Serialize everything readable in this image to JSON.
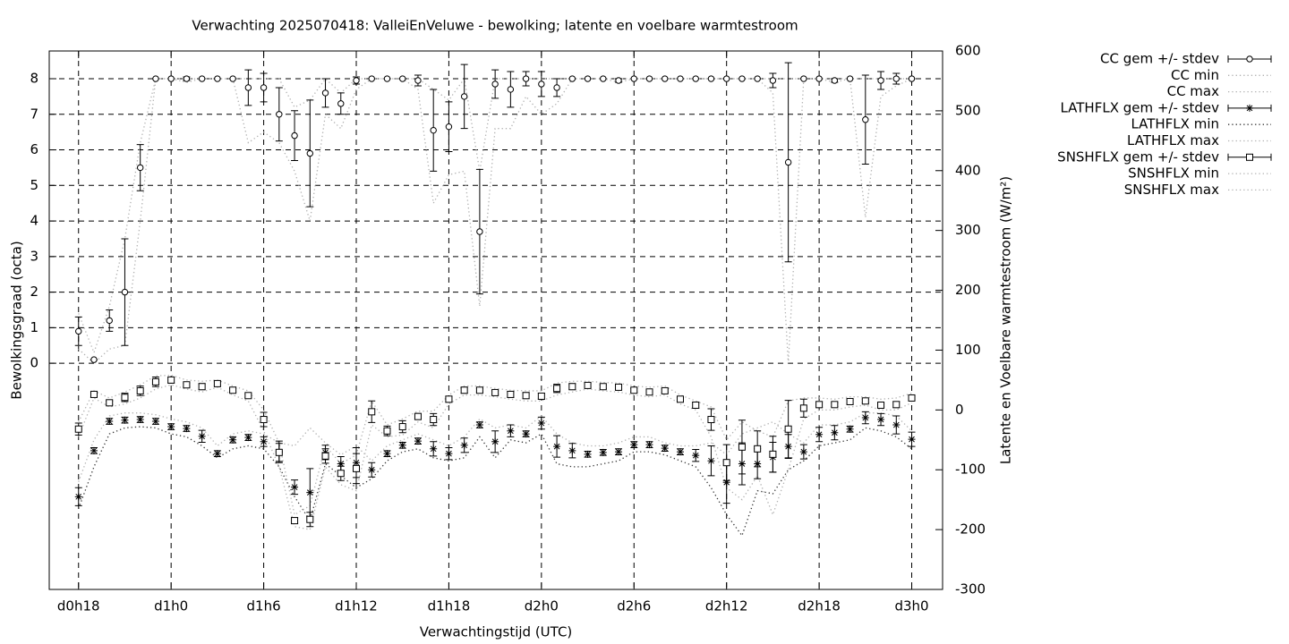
{
  "chart_data": {
    "type": "errorbar",
    "title": "Verwachting 2025070418: ValleiEnVeluwe - bewolking; latente en voelbare warmtestroom",
    "x_label": "Verwachtingstijd (UTC)",
    "y_label": "Bewolkingsgraad (octa)",
    "y2_label": "Latente en Voelbare warmtestroom (W/m²)",
    "x": [
      18,
      19,
      20,
      21,
      22,
      23,
      24,
      25,
      26,
      27,
      28,
      29,
      30,
      31,
      32,
      33,
      34,
      35,
      36,
      37,
      38,
      39,
      40,
      41,
      42,
      43,
      44,
      45,
      46,
      47,
      48,
      49,
      50,
      51,
      52,
      53,
      54,
      55,
      56,
      57,
      58,
      59,
      60,
      61,
      62,
      63,
      64,
      65,
      66,
      67,
      68,
      69,
      70,
      71,
      72
    ],
    "xlim": [
      16.1,
      74.0
    ],
    "xticks": [
      {
        "value": 18,
        "label": "d0h18"
      },
      {
        "value": 24,
        "label": "d1h0"
      },
      {
        "value": 30,
        "label": "d1h6"
      },
      {
        "value": 36,
        "label": "d1h12"
      },
      {
        "value": 42,
        "label": "d1h18"
      },
      {
        "value": 48,
        "label": "d2h0"
      },
      {
        "value": 54,
        "label": "d2h6"
      },
      {
        "value": 60,
        "label": "d2h12"
      },
      {
        "value": 66,
        "label": "d2h18"
      },
      {
        "value": 72,
        "label": "d3h0"
      }
    ],
    "ylim": [
      -6.36,
      8.78
    ],
    "yticks": [
      0,
      1,
      2,
      3,
      4,
      5,
      6,
      7,
      8
    ],
    "y2lim": [
      -300,
      600
    ],
    "y2ticks": [
      -300,
      -200,
      -100,
      0,
      100,
      200,
      300,
      400,
      500,
      600
    ],
    "grid": true,
    "legend": "right",
    "series": [
      {
        "name": "CC gem +/- stdev",
        "axis": "y",
        "marker": "circle",
        "color": "#000000",
        "values": [
          0.9,
          0.1,
          1.2,
          2.0,
          5.5,
          8,
          8,
          8,
          8,
          8,
          8,
          7.75,
          7.75,
          7.0,
          6.4,
          5.9,
          7.6,
          7.3,
          7.95,
          8,
          8,
          8,
          7.95,
          6.55,
          6.65,
          7.5,
          3.7,
          7.85,
          7.7,
          8,
          7.85,
          7.75,
          8,
          8,
          8,
          7.95,
          8,
          8,
          8,
          8,
          8,
          8,
          8,
          8,
          8,
          7.95,
          5.65,
          8,
          8,
          7.95,
          8,
          6.85,
          7.95,
          8,
          8
        ],
        "stdev": [
          0.4,
          0,
          0.3,
          1.5,
          0.65,
          0,
          0,
          0.05,
          0,
          0,
          0,
          0.5,
          0.4,
          0.75,
          0.7,
          1.5,
          0.4,
          0.3,
          0.1,
          0,
          0,
          0,
          0.15,
          1.15,
          0.7,
          0.9,
          1.75,
          0.4,
          0.5,
          0.2,
          0.35,
          0.25,
          0,
          0,
          0,
          0.05,
          0,
          0,
          0,
          0,
          0,
          0,
          0,
          0,
          0,
          0.2,
          2.8,
          0,
          0,
          0.05,
          0,
          1.25,
          0.25,
          0.15,
          0
        ]
      },
      {
        "name": "CC min",
        "axis": "y",
        "style": "dotted",
        "color": "#b0b0b0",
        "values": [
          0.4,
          0,
          0.4,
          0.5,
          4,
          8,
          8,
          7.9,
          8,
          8,
          8,
          6.2,
          6.5,
          6.2,
          5.4,
          4,
          7,
          6.6,
          7.7,
          8,
          8,
          8,
          7.7,
          4.5,
          5.3,
          5.4,
          1.6,
          6.6,
          6.6,
          7.5,
          7,
          7.3,
          8,
          8,
          8,
          7.9,
          8,
          8,
          8,
          8,
          8,
          8,
          8,
          8,
          8,
          7.6,
          0,
          8,
          8,
          7.9,
          8,
          4.1,
          7.5,
          7.8,
          8
        ]
      },
      {
        "name": "CC max",
        "axis": "y",
        "style": "dotted",
        "color": "#b0b0b0",
        "values": [
          1.4,
          0.3,
          1.6,
          3.5,
          6.2,
          8,
          8,
          8,
          8,
          8,
          8,
          8,
          8,
          8,
          7.2,
          7.4,
          8,
          7.6,
          8,
          8,
          8,
          8,
          8,
          7.7,
          7.4,
          8,
          5.4,
          8,
          8,
          8,
          8,
          8,
          8,
          8,
          8,
          8,
          8,
          8,
          8,
          8,
          8,
          8,
          8,
          8,
          8,
          8,
          8,
          8,
          8,
          8,
          8,
          8,
          8,
          8,
          8
        ]
      },
      {
        "name": "LATHFLX gem +/- stdev",
        "axis": "y2",
        "marker": "star",
        "color": "#000000",
        "values": [
          -145,
          -68,
          -19,
          -17,
          -16,
          -19,
          -28,
          -31,
          -44,
          -73,
          -50,
          -46,
          -53,
          -70,
          -129,
          -138,
          -71,
          -90,
          -88,
          -100,
          -73,
          -59,
          -52,
          -65,
          -73,
          -59,
          -25,
          -53,
          -35,
          -40,
          -22,
          -61,
          -68,
          -74,
          -71,
          -70,
          -58,
          -58,
          -64,
          -70,
          -76,
          -85,
          -121,
          -90,
          -90,
          -79,
          -61,
          -70,
          -41,
          -38,
          -32,
          -13,
          -16,
          -25,
          -49
        ],
        "stdev": [
          15,
          5,
          5,
          5,
          5,
          5,
          5,
          5,
          10,
          5,
          5,
          5,
          8,
          18,
          12,
          40,
          12,
          12,
          25,
          12,
          5,
          5,
          5,
          12,
          10,
          12,
          5,
          18,
          10,
          5,
          10,
          18,
          12,
          5,
          5,
          5,
          5,
          5,
          5,
          5,
          10,
          25,
          35,
          35,
          25,
          25,
          20,
          12,
          12,
          12,
          5,
          10,
          10,
          15,
          12
        ]
      },
      {
        "name": "LATHFLX min",
        "axis": "y2",
        "style": "dotted",
        "color": "#333333",
        "values": [
          -165,
          -95,
          -40,
          -30,
          -28,
          -30,
          -40,
          -45,
          -60,
          -80,
          -65,
          -60,
          -65,
          -95,
          -145,
          -185,
          -90,
          -110,
          -130,
          -115,
          -85,
          -70,
          -65,
          -80,
          -85,
          -80,
          -45,
          -80,
          -50,
          -55,
          -40,
          -90,
          -95,
          -95,
          -90,
          -85,
          -70,
          -70,
          -75,
          -85,
          -95,
          -130,
          -175,
          -210,
          -135,
          -140,
          -100,
          -85,
          -60,
          -55,
          -50,
          -30,
          -35,
          -45,
          -65
        ]
      },
      {
        "name": "LATHFLX max",
        "axis": "y2",
        "style": "dotted",
        "color": "#b0b0b0",
        "values": [
          -120,
          -50,
          -10,
          -5,
          -5,
          -8,
          -15,
          -20,
          -30,
          -60,
          -40,
          -35,
          -40,
          -55,
          -60,
          -30,
          -55,
          -75,
          -60,
          -85,
          -60,
          -50,
          -40,
          -50,
          -60,
          -45,
          -15,
          -30,
          -25,
          -30,
          -10,
          -40,
          -55,
          -60,
          -60,
          -55,
          -45,
          -45,
          -55,
          -60,
          -60,
          -55,
          -75,
          -40,
          -30,
          -20,
          -40,
          -55,
          -25,
          -25,
          -20,
          -5,
          -5,
          -10,
          -35
        ]
      },
      {
        "name": "SNSHFLX gem +/- stdev",
        "axis": "y2",
        "marker": "square",
        "color": "#000000",
        "values": [
          -32,
          26,
          12,
          21,
          32,
          47,
          50,
          42,
          39,
          44,
          33,
          24,
          -16,
          -71,
          -185,
          -183,
          -77,
          -106,
          -98,
          -3,
          -35,
          -28,
          -11,
          -16,
          18,
          33,
          33,
          29,
          26,
          24,
          23,
          36,
          39,
          41,
          39,
          38,
          33,
          30,
          32,
          18,
          8,
          -16,
          -88,
          -62,
          -65,
          -74,
          -32,
          3,
          9,
          9,
          14,
          15,
          8,
          9,
          20
        ],
        "stdev": [
          10,
          3,
          3,
          7,
          8,
          8,
          5,
          3,
          5,
          3,
          3,
          3,
          12,
          15,
          5,
          12,
          12,
          12,
          25,
          18,
          8,
          10,
          5,
          10,
          5,
          5,
          3,
          3,
          5,
          5,
          5,
          7,
          5,
          3,
          3,
          3,
          3,
          3,
          3,
          3,
          5,
          18,
          30,
          45,
          30,
          30,
          48,
          15,
          5,
          3,
          3,
          3,
          3,
          5,
          3
        ]
      },
      {
        "name": "SNSHFLX min",
        "axis": "y2",
        "style": "dotted",
        "color": "#b0b0b0",
        "values": [
          -45,
          20,
          5,
          10,
          20,
          35,
          42,
          35,
          30,
          38,
          25,
          15,
          -35,
          -95,
          -195,
          -200,
          -95,
          -125,
          -135,
          -25,
          -45,
          -42,
          -20,
          -30,
          10,
          25,
          25,
          22,
          18,
          15,
          15,
          25,
          30,
          35,
          32,
          30,
          25,
          22,
          25,
          10,
          0,
          -45,
          -130,
          -150,
          -110,
          -175,
          -100,
          -15,
          0,
          0,
          5,
          8,
          0,
          0,
          12
        ]
      },
      {
        "name": "SNSHFLX max",
        "axis": "y2",
        "style": "dotted",
        "color": "#b0b0b0",
        "values": [
          -20,
          32,
          20,
          30,
          42,
          57,
          58,
          50,
          48,
          50,
          40,
          32,
          0,
          -55,
          -175,
          -160,
          -60,
          -90,
          -75,
          15,
          -25,
          -15,
          -2,
          -2,
          25,
          40,
          40,
          36,
          33,
          32,
          32,
          45,
          48,
          48,
          46,
          45,
          40,
          38,
          40,
          25,
          15,
          5,
          -50,
          -20,
          -35,
          -45,
          15,
          20,
          20,
          18,
          22,
          22,
          18,
          20,
          28
        ]
      }
    ]
  }
}
